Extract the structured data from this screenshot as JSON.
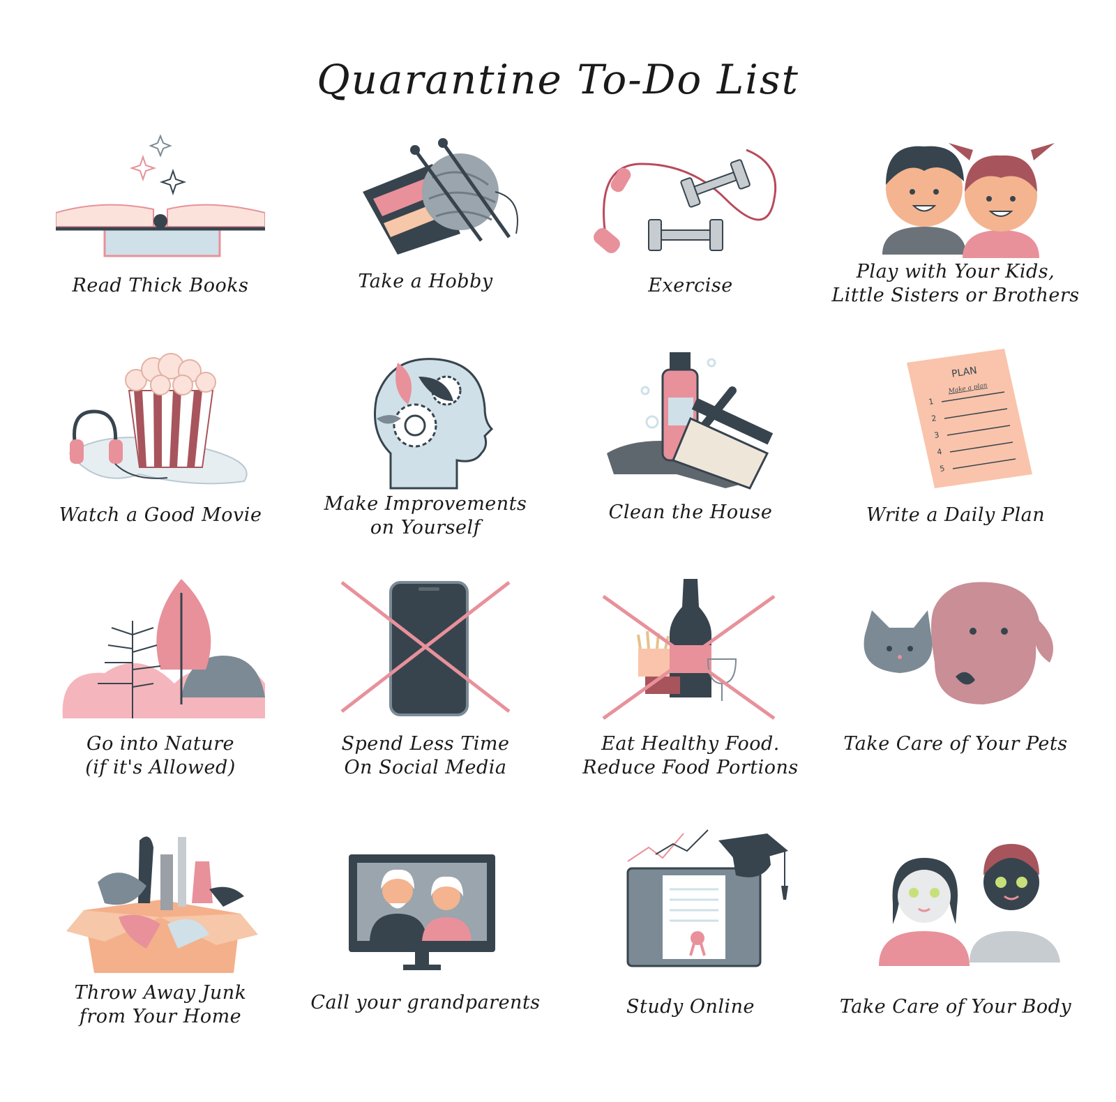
{
  "title": "Quarantine To-Do List",
  "colors": {
    "pink": "#e8919b",
    "dark_slate": "#37444e",
    "light_blue": "#cfe0e8",
    "peach": "#f9c4ab",
    "gray": "#9aa0a6"
  },
  "items": [
    {
      "label": "Read Thick Books",
      "icon": "book-icon"
    },
    {
      "label": "Take a Hobby",
      "icon": "knitting-icon"
    },
    {
      "label": "Exercise",
      "icon": "dumbbell-icon"
    },
    {
      "label": "Play with Your Kids,\nLittle Sisters or Brothers",
      "icon": "kids-icon"
    },
    {
      "label": "Watch a Good Movie",
      "icon": "popcorn-icon"
    },
    {
      "label": "Make Improvements\non Yourself",
      "icon": "head-gears-icon"
    },
    {
      "label": "Clean the House",
      "icon": "cleaning-icon"
    },
    {
      "label": "Write a Daily Plan",
      "icon": "plan-icon"
    },
    {
      "label": "Go into Nature\n(if it's Allowed)",
      "icon": "nature-icon"
    },
    {
      "label": "Spend Less Time\nOn Social Media",
      "icon": "no-phone-icon"
    },
    {
      "label": "Eat Healthy Food.\nReduce Food Portions",
      "icon": "no-junk-food-icon"
    },
    {
      "label": "Take Care of Your Pets",
      "icon": "pets-icon"
    },
    {
      "label": "Throw Away Junk\nfrom Your Home",
      "icon": "junk-box-icon"
    },
    {
      "label": "Call your grandparents",
      "icon": "video-call-icon"
    },
    {
      "label": "Study Online",
      "icon": "study-online-icon"
    },
    {
      "label": "Take Care of Your Body",
      "icon": "face-mask-icon"
    }
  ],
  "plan_sheet": {
    "heading": "PLAN",
    "subheading": "Make a plan",
    "numbers": [
      "1",
      "2",
      "3",
      "4",
      "5"
    ]
  }
}
